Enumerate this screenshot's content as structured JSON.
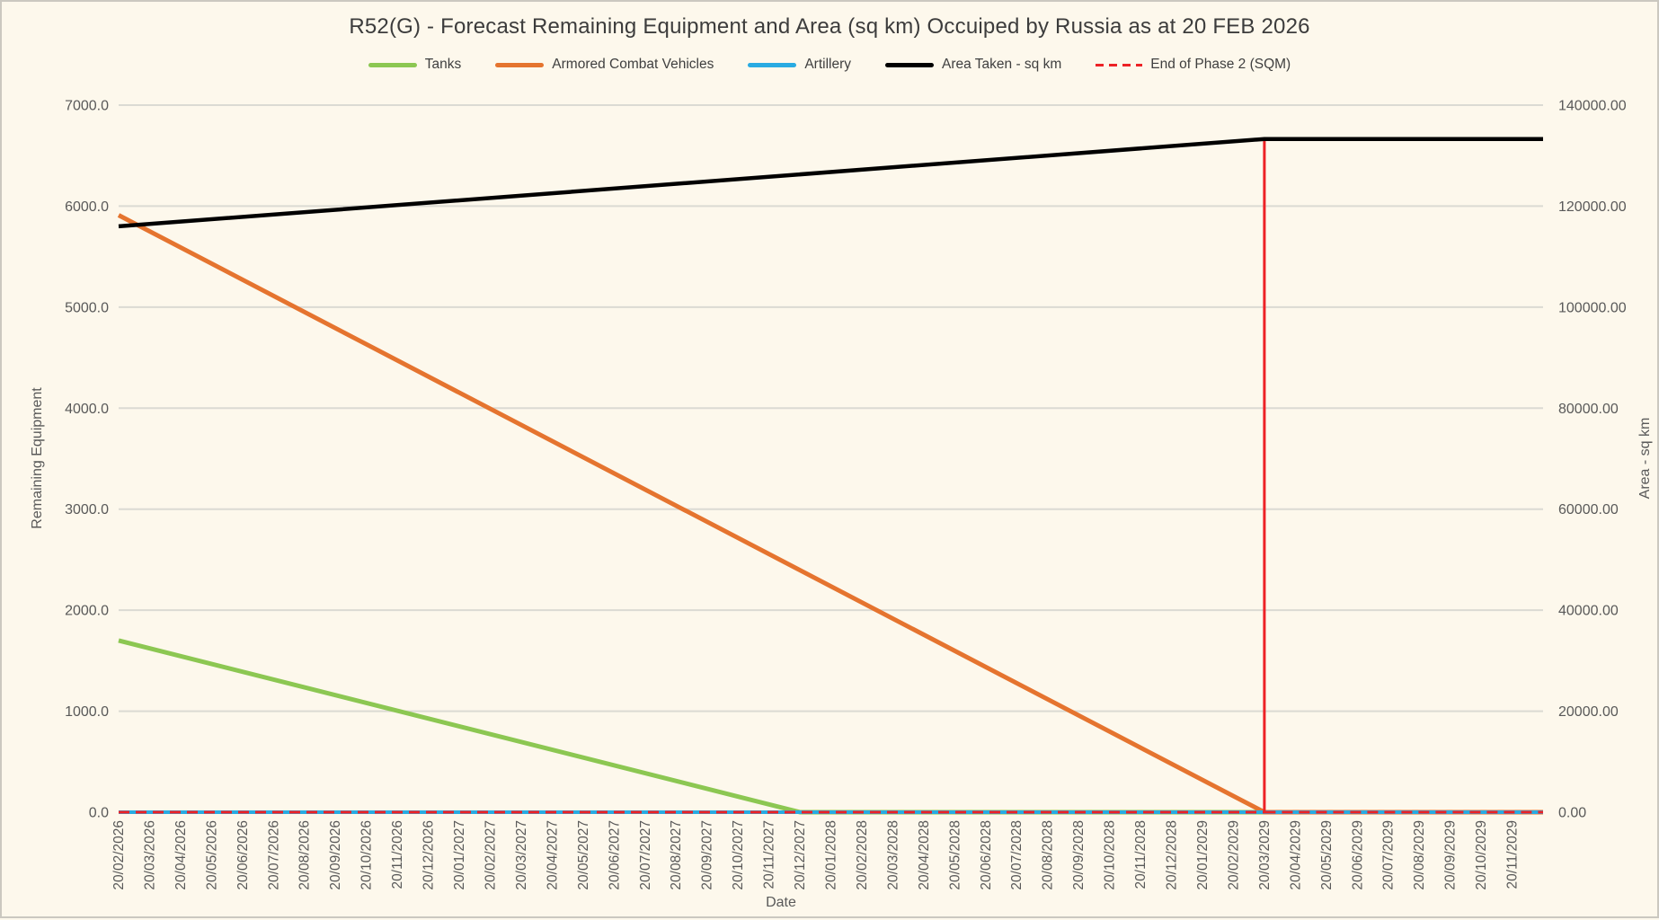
{
  "chart_data": {
    "type": "line",
    "title": "R52(G) - Forecast Remaining Equipment and Area (sq km) Occuiped by Russia as at 20 FEB 2026",
    "legend_position": "top",
    "grid": "horizontal",
    "x_axis": {
      "title": "Date",
      "labels": [
        "20/02/2026",
        "20/03/2026",
        "20/04/2026",
        "20/05/2026",
        "20/06/2026",
        "20/07/2026",
        "20/08/2026",
        "20/09/2026",
        "20/10/2026",
        "20/11/2026",
        "20/12/2026",
        "20/01/2027",
        "20/02/2027",
        "20/03/2027",
        "20/04/2027",
        "20/05/2027",
        "20/06/2027",
        "20/07/2027",
        "20/08/2027",
        "20/09/2027",
        "20/10/2027",
        "20/11/2027",
        "20/12/2027",
        "20/01/2028",
        "20/02/2028",
        "20/03/2028",
        "20/04/2028",
        "20/05/2028",
        "20/06/2028",
        "20/07/2028",
        "20/08/2028",
        "20/09/2028",
        "20/10/2028",
        "20/11/2028",
        "20/12/2028",
        "20/01/2029",
        "20/02/2029",
        "20/03/2029",
        "20/04/2029",
        "20/05/2029",
        "20/06/2029",
        "20/07/2029",
        "20/08/2029",
        "20/09/2029",
        "20/10/2029",
        "20/11/2029"
      ],
      "slots": 46
    },
    "y_axis_left": {
      "title": "Remaining Equipment",
      "min": 0,
      "max": 7000,
      "step": 1000,
      "tick_labels": [
        "0.0",
        "1000.0",
        "2000.0",
        "3000.0",
        "4000.0",
        "5000.0",
        "6000.0",
        "7000.0"
      ]
    },
    "y_axis_right": {
      "title": "Area - sq km",
      "min": 0,
      "max": 140000,
      "step": 20000,
      "tick_labels": [
        "0.00",
        "20000.00",
        "40000.00",
        "60000.00",
        "80000.00",
        "100000.00",
        "120000.00",
        "140000.00"
      ]
    },
    "legend_order": [
      "Tanks",
      "Armored Combat Vehicles",
      "Artillery",
      "Area Taken - sq km",
      "End of Phase 2 (SQM)"
    ],
    "series": [
      {
        "name": "Tanks",
        "color": "#8CC752",
        "axis": "left",
        "width": 5,
        "dashed": false,
        "points_month_value": [
          [
            0,
            1700
          ],
          [
            22,
            0
          ],
          [
            46,
            0
          ]
        ]
      },
      {
        "name": "Armored Combat Vehicles",
        "color": "#E5742F",
        "axis": "left",
        "width": 5,
        "dashed": false,
        "points_month_value": [
          [
            0,
            5910
          ],
          [
            37,
            0
          ],
          [
            46,
            0
          ]
        ]
      },
      {
        "name": "Artillery",
        "color": "#29ABE2",
        "axis": "left",
        "width": 4,
        "dashed": false,
        "points_month_value": [
          [
            0,
            0
          ],
          [
            46,
            0
          ]
        ]
      },
      {
        "name": "Area Taken - sq km",
        "color": "#000000",
        "axis": "right",
        "width": 4.5,
        "dashed": false,
        "points_month_value": [
          [
            0,
            116000
          ],
          [
            37,
            133300
          ],
          [
            46,
            133300
          ]
        ]
      },
      {
        "name": "End of Phase 2 (SQM)",
        "color": "#ED2226",
        "axis": "right",
        "width": 3,
        "dashed": true,
        "spike_month": 37,
        "spike_value": 133300,
        "points_month_value": [
          [
            0,
            0
          ],
          [
            37,
            0
          ],
          [
            37,
            133300
          ],
          [
            37,
            0
          ],
          [
            46,
            0
          ]
        ]
      }
    ],
    "notes": {
      "tanks_zero_date": "20/12/2027",
      "acv_zero_date": "20/03/2029",
      "area_start": 116000,
      "area_plateau": 133300,
      "end_of_phase2_date": "20/03/2029"
    }
  },
  "colors": {
    "background": "#FDF8EC",
    "frame_border": "#CBC8C0",
    "gridline": "#DBDAD3",
    "tick_text": "#595959",
    "title_text": "#3C3C3C"
  }
}
